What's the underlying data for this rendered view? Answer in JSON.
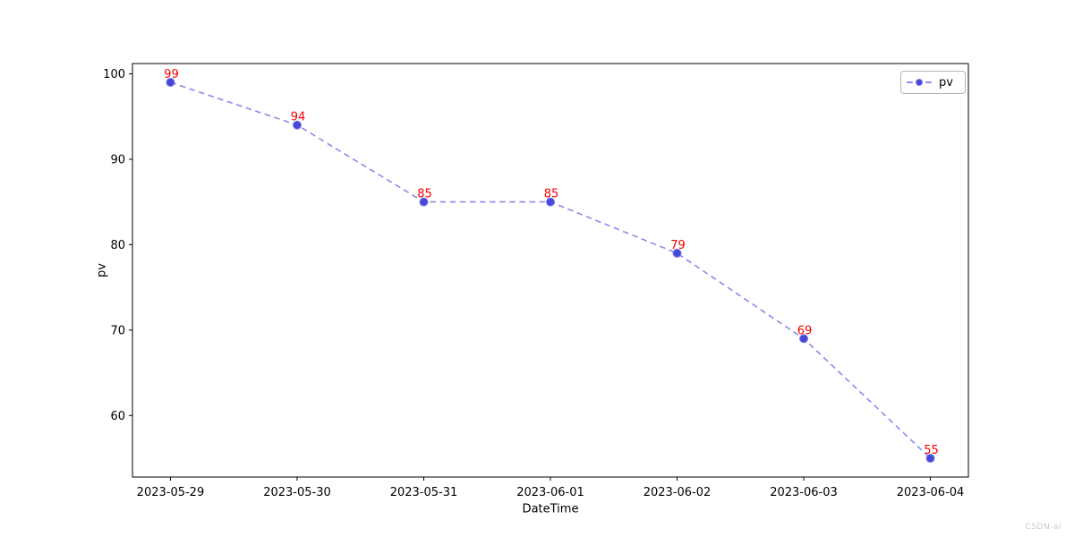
{
  "figure": {
    "watermark": "CSDN-ai"
  },
  "chart_data": {
    "type": "line",
    "title": "",
    "xlabel": "DateTime",
    "ylabel": "pv",
    "categories": [
      "2023-05-29",
      "2023-05-30",
      "2023-05-31",
      "2023-06-01",
      "2023-06-02",
      "2023-06-03",
      "2023-06-04"
    ],
    "series": [
      {
        "name": "pv",
        "values": [
          99,
          94,
          85,
          85,
          79,
          69,
          55
        ]
      }
    ],
    "point_labels": [
      "99",
      "94",
      "85",
      "85",
      "79",
      "69",
      "55"
    ],
    "yticks": [
      60,
      70,
      80,
      90,
      100
    ],
    "xlim": [
      -0.3,
      6.3
    ],
    "ylim": [
      52.8,
      101.2
    ],
    "grid": false,
    "line_style": "dashed",
    "marker": "circle",
    "legend": {
      "position": "upper right",
      "entries": [
        "pv"
      ]
    },
    "colors": {
      "line": "#8a8aee",
      "marker_fill": "#4747d8",
      "marker_edge": "#7d7de8",
      "point_label": "#f40000",
      "spine": "#000000",
      "tick_label": "#000000",
      "legend_border": "#b3b3b3",
      "watermark": "#c9c9c9",
      "background": "#ffffff"
    }
  }
}
